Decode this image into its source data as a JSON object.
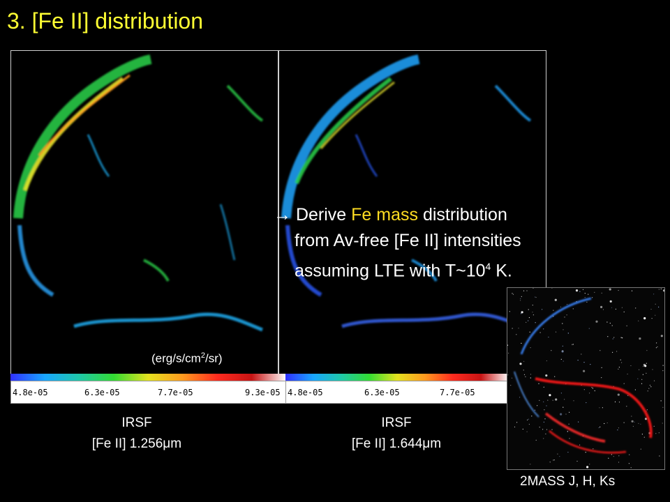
{
  "slide": {
    "title": "3. [Fe II] distribution"
  },
  "panels": [
    {
      "caption_line1": "IRSF",
      "caption_line2": "[Fe II] 1.256μm",
      "colorbar_ticks": [
        "4.8e-05",
        "6.3e-05",
        "7.7e-05",
        "9.3e-05"
      ],
      "unit_text": "(erg/s/cm",
      "unit_sup": "2",
      "unit_tail": "/sr)"
    },
    {
      "caption_line1": "IRSF",
      "caption_line2": "[Fe II] 1.644μm",
      "colorbar_ticks": [
        "4.8e-05",
        "6.3e-05",
        "7.7e-05"
      ]
    }
  ],
  "bullet": {
    "arrow": "→",
    "pre": "Derive ",
    "highlight": "Fe mass",
    "post": " distribution",
    "line2": "from Av-free [Fe II] intensities",
    "line3_pre": "assuming LTE with T~10",
    "line3_sup": "4",
    "line3_post": " K."
  },
  "inset": {
    "caption": "2MASS J, H, Ks"
  },
  "colors": {
    "title": "#ffff33",
    "highlight": "#ffdd22",
    "background": "#000000"
  }
}
